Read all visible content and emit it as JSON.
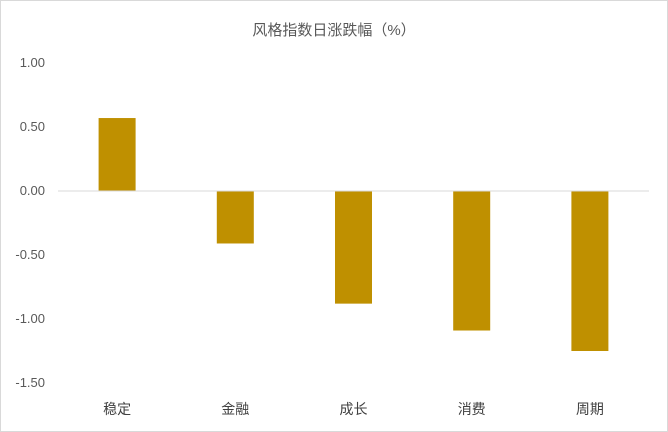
{
  "chart_data": {
    "type": "bar",
    "title": "风格指数日涨跌幅（%）",
    "categories": [
      "稳定",
      "金融",
      "成长",
      "消费",
      "周期"
    ],
    "values": [
      0.57,
      -0.41,
      -0.88,
      -1.09,
      -1.25
    ],
    "ylim": [
      -1.5,
      1.0
    ],
    "yticks": [
      1.0,
      0.5,
      0.0,
      -0.5,
      -1.0,
      -1.5
    ],
    "ytick_labels": [
      "1.00",
      "0.50",
      "0.00",
      "-0.50",
      "-1.00",
      "-1.50"
    ],
    "xlabel": "",
    "ylabel": "",
    "bar_color": "#BF9000",
    "axis_color": "#D9D9D9",
    "grid": false,
    "legend": "none"
  }
}
